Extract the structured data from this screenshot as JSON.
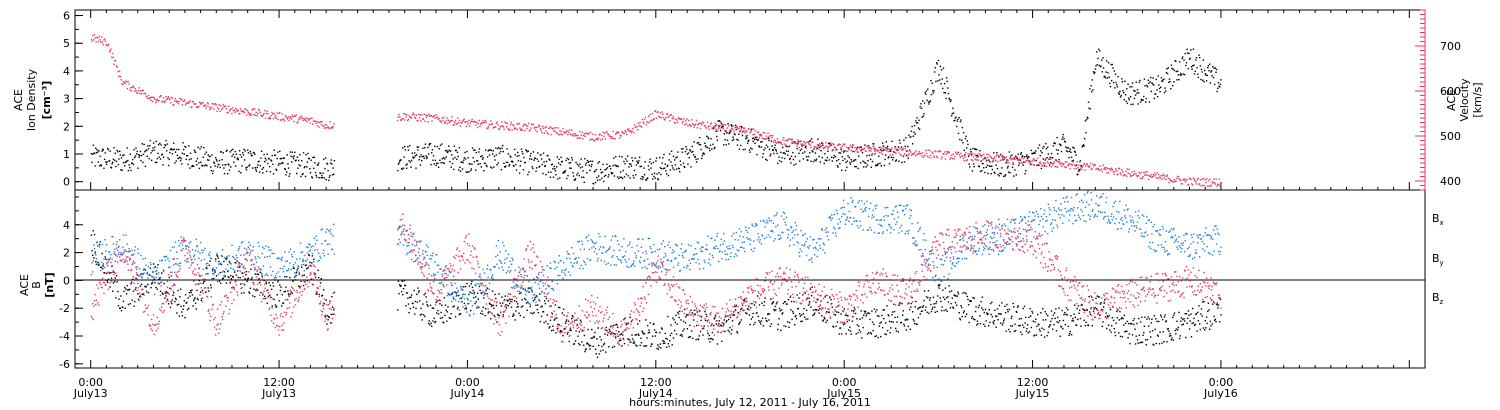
{
  "colors": {
    "black": "#000000",
    "pink": "#e8395f",
    "blue": "#1f7fe0"
  },
  "xaxis": {
    "title": "hours:minutes, July 12, 2011 - July 16, 2011",
    "range_hours": [
      -1,
      85
    ],
    "ticks": [
      {
        "hour": 0,
        "time": "0:00",
        "date": "July13"
      },
      {
        "hour": 12,
        "time": "12:00",
        "date": "July13"
      },
      {
        "hour": 24,
        "time": "0:00",
        "date": "July14"
      },
      {
        "hour": 36,
        "time": "12:00",
        "date": "July14"
      },
      {
        "hour": 48,
        "time": "0:00",
        "date": "July15"
      },
      {
        "hour": 60,
        "time": "12:00",
        "date": "July15"
      },
      {
        "hour": 72,
        "time": "0:00",
        "date": "July16"
      }
    ]
  },
  "top_panel": {
    "left_label": [
      "ACE",
      "Ion Density",
      "[cm⁻³]"
    ],
    "right_label": [
      "ACE",
      "Velocity",
      "[km/s]"
    ],
    "left_ticks": [
      "0",
      "1",
      "2",
      "3",
      "4",
      "5",
      "6"
    ],
    "right_ticks": [
      "400",
      "500",
      "600",
      "700"
    ]
  },
  "bottom_panel": {
    "left_label": [
      "ACE",
      "B",
      "[nT]"
    ],
    "left_ticks": [
      "-6",
      "-4",
      "-2",
      "0",
      "2",
      "4"
    ],
    "legend": [
      {
        "name": "Bx",
        "base": "B",
        "sub": "x",
        "color": "#000000"
      },
      {
        "name": "By",
        "base": "B",
        "sub": "y",
        "color": "#1f7fe0"
      },
      {
        "name": "Bz",
        "base": "B",
        "sub": "z",
        "color": "#e8395f"
      }
    ]
  },
  "chart_data": [
    {
      "type": "scatter",
      "panel": "top",
      "xlabel": "hours:minutes, July 12, 2011 - July 16, 2011",
      "ylabel": "ACE Ion Density [cm-3]",
      "y2label": "ACE Velocity [km/s]",
      "xlim": [
        -1,
        85
      ],
      "ylim": [
        -0.3,
        6.2
      ],
      "y2lim": [
        380,
        780
      ],
      "gaps_hours": [
        [
          15.5,
          19.5
        ]
      ],
      "series": [
        {
          "name": "Ion Density",
          "axis": "left",
          "color": "#000000",
          "x": [
            0,
            2,
            4,
            6,
            8,
            10,
            12,
            14,
            15,
            20,
            22,
            24,
            26,
            28,
            30,
            32,
            34,
            36,
            38,
            40,
            42,
            44,
            46,
            48,
            50,
            52,
            54,
            56,
            57,
            58,
            60,
            62,
            63,
            64,
            66,
            68,
            70,
            72
          ],
          "y": [
            0.9,
            0.8,
            1.1,
            1.0,
            0.7,
            0.8,
            0.7,
            0.6,
            0.5,
            0.9,
            1.0,
            0.8,
            0.9,
            0.7,
            0.5,
            0.4,
            0.6,
            0.5,
            0.9,
            1.8,
            1.5,
            1.0,
            1.2,
            0.8,
            1.0,
            1.2,
            4.2,
            0.8,
            0.7,
            0.6,
            0.8,
            1.3,
            0.6,
            4.5,
            3.2,
            3.4,
            4.5,
            3.5
          ]
        },
        {
          "name": "Velocity",
          "axis": "right",
          "color": "#e8395f",
          "x": [
            0,
            1,
            2,
            4,
            6,
            8,
            10,
            12,
            14,
            15,
            20,
            22,
            24,
            26,
            28,
            30,
            32,
            34,
            36,
            38,
            40,
            42,
            44,
            46,
            48,
            50,
            52,
            54,
            56,
            58,
            60,
            62,
            64,
            66,
            68,
            70,
            72
          ],
          "y": [
            720,
            710,
            620,
            585,
            575,
            565,
            555,
            545,
            535,
            525,
            545,
            540,
            530,
            525,
            520,
            510,
            500,
            505,
            550,
            530,
            520,
            510,
            490,
            480,
            475,
            470,
            465,
            460,
            455,
            450,
            445,
            440,
            430,
            420,
            410,
            400,
            398
          ]
        }
      ]
    },
    {
      "type": "scatter",
      "panel": "bottom",
      "xlabel": "hours:minutes, July 12, 2011 - July 16, 2011",
      "ylabel": "ACE B [nT]",
      "xlim": [
        -1,
        85
      ],
      "ylim": [
        -6.3,
        6.5
      ],
      "gaps_hours": [
        [
          15.5,
          19.5
        ]
      ],
      "series": [
        {
          "name": "Bx",
          "color": "#000000",
          "x": [
            0,
            2,
            4,
            6,
            8,
            10,
            12,
            14,
            15,
            20,
            22,
            24,
            26,
            28,
            30,
            32,
            34,
            36,
            38,
            40,
            42,
            44,
            46,
            48,
            50,
            52,
            54,
            56,
            58,
            60,
            62,
            64,
            66,
            68,
            70,
            72
          ],
          "y": [
            3.0,
            -1.5,
            0.5,
            -2.0,
            1.0,
            0.0,
            -1.0,
            1.0,
            -2.0,
            -1.0,
            -2.5,
            -1.0,
            -2.0,
            -1.5,
            -3.0,
            -4.5,
            -3.5,
            -4.0,
            -3.0,
            -3.5,
            -2.0,
            -2.5,
            -1.5,
            -3.0,
            -3.0,
            -2.5,
            -1.0,
            -2.0,
            -2.5,
            -3.0,
            -3.0,
            -2.0,
            -3.5,
            -3.5,
            -3.0,
            -2.0
          ]
        },
        {
          "name": "By",
          "color": "#1f7fe0",
          "x": [
            0,
            2,
            4,
            6,
            8,
            10,
            12,
            14,
            15,
            20,
            22,
            24,
            26,
            28,
            30,
            32,
            34,
            36,
            38,
            40,
            42,
            44,
            46,
            48,
            50,
            52,
            54,
            56,
            58,
            60,
            62,
            64,
            66,
            68,
            70,
            72
          ],
          "y": [
            1.5,
            2.5,
            0.0,
            2.5,
            1.0,
            2.0,
            1.0,
            2.0,
            3.0,
            3.0,
            1.0,
            -2.0,
            2.0,
            -1.0,
            1.0,
            2.5,
            2.0,
            2.0,
            1.5,
            2.5,
            3.0,
            4.0,
            2.0,
            5.0,
            4.5,
            4.5,
            0.5,
            3.0,
            3.0,
            4.0,
            5.0,
            5.5,
            4.5,
            3.0,
            2.5,
            3.0
          ]
        },
        {
          "name": "Bz",
          "color": "#e8395f",
          "x": [
            0,
            2,
            4,
            6,
            8,
            10,
            12,
            14,
            15,
            20,
            22,
            24,
            26,
            28,
            30,
            32,
            34,
            36,
            38,
            40,
            42,
            44,
            46,
            48,
            50,
            52,
            54,
            56,
            58,
            60,
            62,
            64,
            66,
            68,
            70,
            72
          ],
          "y": [
            -2.0,
            2.5,
            -3.0,
            2.5,
            -3.0,
            1.5,
            -3.0,
            1.0,
            -2.5,
            4.0,
            -1.0,
            2.5,
            -3.0,
            2.0,
            -3.5,
            -2.0,
            -4.0,
            1.0,
            -2.0,
            -3.0,
            -1.0,
            0.0,
            -1.0,
            -2.0,
            0.0,
            -1.0,
            2.5,
            3.0,
            3.5,
            3.0,
            0.0,
            -2.0,
            -1.0,
            -0.5,
            0.0,
            -1.0
          ]
        }
      ]
    }
  ]
}
